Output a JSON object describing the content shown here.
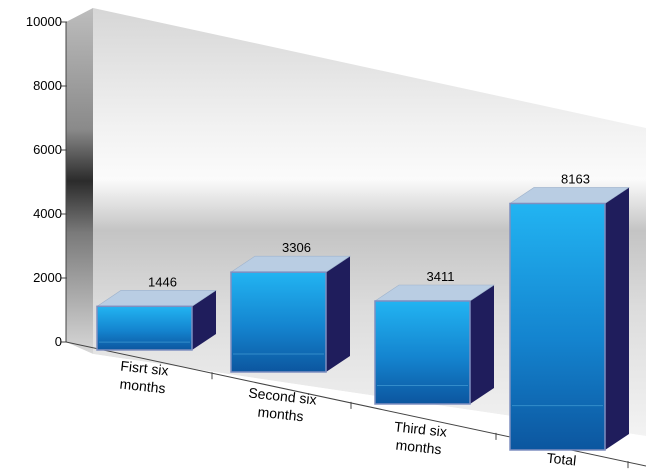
{
  "chart_data": {
    "type": "bar",
    "title": "",
    "xlabel": "",
    "ylabel": "",
    "ylim": [
      0,
      10000
    ],
    "yticks": [
      0,
      2000,
      4000,
      6000,
      8000,
      10000
    ],
    "tick_labels": [
      "0",
      "2000",
      "4000",
      "6000",
      "8000",
      "10000"
    ],
    "grid": false,
    "legend": "none",
    "style": "3d",
    "categories": [
      [
        "Fisrt six",
        "months"
      ],
      [
        "Second six",
        "months"
      ],
      [
        "Third six",
        "months"
      ],
      [
        "Total"
      ]
    ],
    "values": [
      1446,
      3306,
      3411,
      8163
    ],
    "data_labels": [
      "1446",
      "3306",
      "3411",
      "8163"
    ],
    "colors": {
      "bar_front_top": "#1aa6e8",
      "bar_front_bottom": "#0b4f9a",
      "bar_side": "#1f1d5c",
      "bar_top": "#b9cde3",
      "bar_edge": "#7f8fc0",
      "wall_light": "#ececec",
      "wall_dark": "#3a3a3a"
    }
  }
}
